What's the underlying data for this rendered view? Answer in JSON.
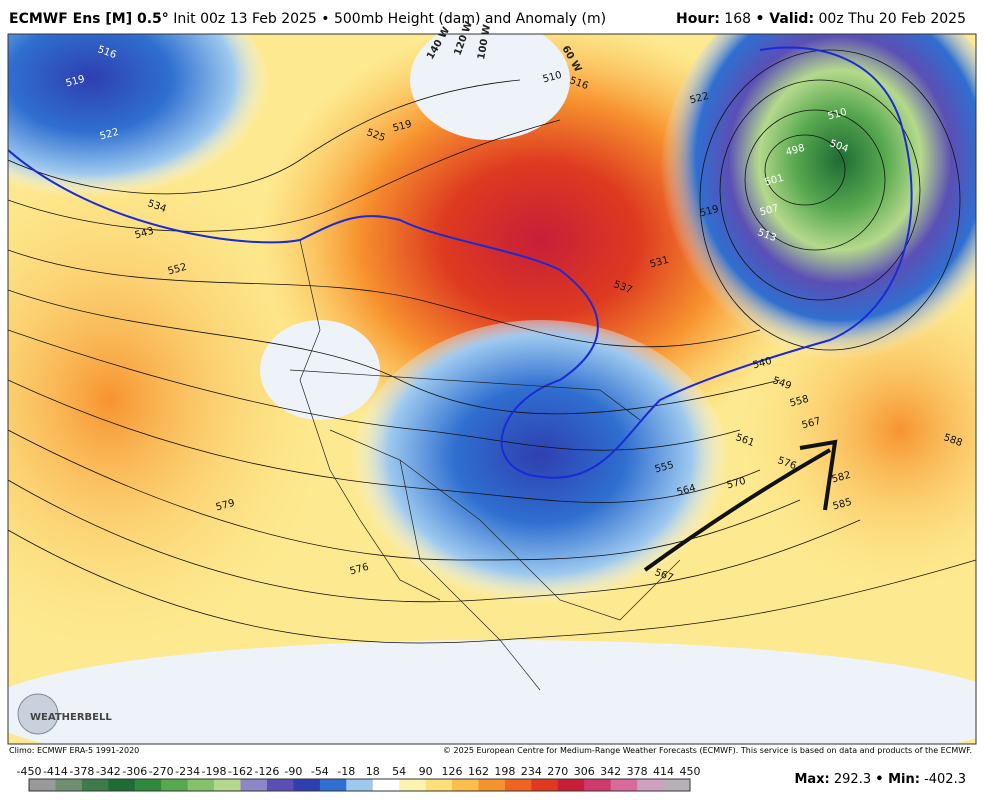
{
  "header": {
    "title": "ECMWF Ens [M] 0.5°",
    "subtitle": "Init 00z 13 Feb 2025 • 500mb Height (dam) and Anomaly (m)",
    "hour_label": "Hour:",
    "hour": 168,
    "valid_label": "• Valid:",
    "valid": "00z Thu 20 Feb 2025"
  },
  "map": {
    "contour_labels": [
      "516",
      "519",
      "522",
      "534",
      "543",
      "552",
      "525",
      "519",
      "510",
      "516",
      "522",
      "531",
      "537",
      "498",
      "510",
      "504",
      "501",
      "507",
      "513",
      "519",
      "540",
      "549",
      "558",
      "567",
      "561",
      "570",
      "564",
      "576",
      "582",
      "585",
      "588",
      "579",
      "576",
      "567",
      "555"
    ],
    "longitude_labels": [
      "140 W",
      "120 W",
      "100 W",
      "60 W"
    ],
    "logo": "WEATHERBELL"
  },
  "footer": {
    "climo": "Climo: ECMWF ERA-5 1991-2020",
    "copyright": "© 2025 European Centre for Medium-Range Weather Forecasts (ECMWF). This service is based on data and products of the ECMWF."
  },
  "colorbar": {
    "ticks": [
      -450,
      -414,
      -378,
      -342,
      -306,
      -270,
      -234,
      -198,
      -162,
      -126,
      -90,
      -54,
      -18,
      18,
      54,
      90,
      126,
      162,
      198,
      234,
      270,
      306,
      342,
      378,
      414,
      450
    ],
    "colors": [
      "#9a9a9a",
      "#6f8f70",
      "#3f7a4a",
      "#1e6b35",
      "#2f8a3e",
      "#57a84f",
      "#86c26a",
      "#b5d98c",
      "#8d86c9",
      "#5b4fb5",
      "#2f3fb0",
      "#2f6fd0",
      "#9ec9ef",
      "#ffffff",
      "#fdf3b0",
      "#fde07a",
      "#fcbf4e",
      "#f7932f",
      "#ef6420",
      "#de3a20",
      "#c81e3a",
      "#cf3b6e",
      "#d86b9c",
      "#cf9fbf",
      "#b8b0b8"
    ]
  },
  "stats": {
    "max_label": "Max:",
    "max": 292.3,
    "min_label": "• Min:",
    "min": -402.3
  }
}
